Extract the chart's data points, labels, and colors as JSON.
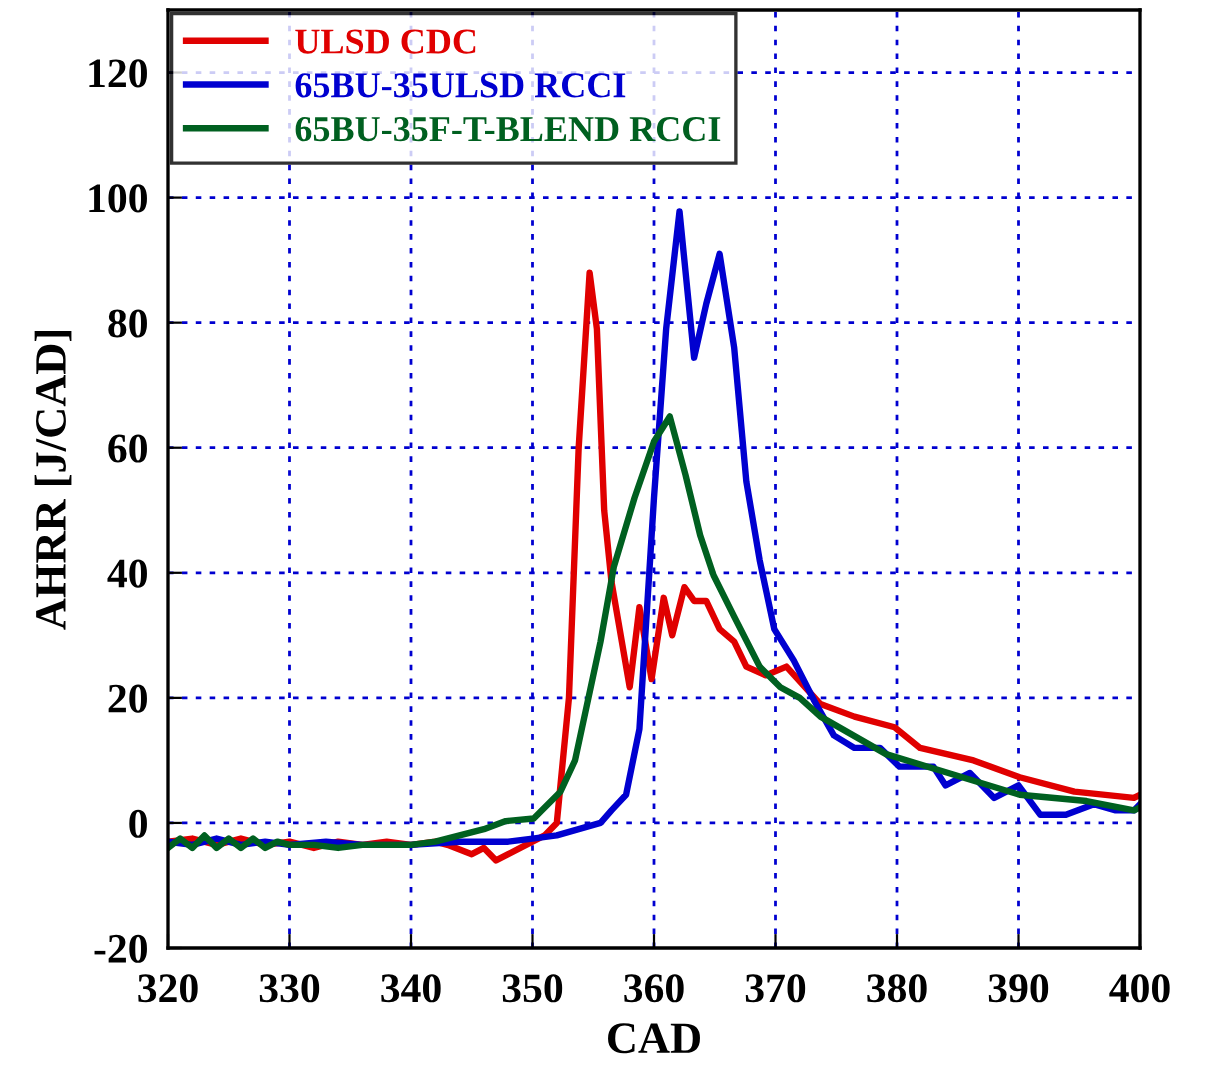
{
  "chart_data": {
    "type": "line",
    "xlabel": "CAD",
    "ylabel": "AHRR [J/CAD]",
    "xlim": [
      320,
      400
    ],
    "ylim": [
      -20,
      130
    ],
    "xticks": [
      320,
      330,
      340,
      350,
      360,
      370,
      380,
      390,
      400
    ],
    "yticks": [
      -20,
      0,
      20,
      40,
      60,
      80,
      100,
      120
    ],
    "grid": true,
    "legend": "top left",
    "line_style": "solid",
    "marker": "none",
    "series": [
      {
        "name": "ULSD CDC",
        "color": "#e00000",
        "x": [
          320,
          322,
          324,
          326,
          328,
          330,
          332,
          334,
          336,
          338,
          340,
          342,
          343,
          345,
          346,
          347,
          348,
          349,
          350,
          351,
          352,
          353,
          353.8,
          354.7,
          355.3,
          355.9,
          356.5,
          358.0,
          358.8,
          359.8,
          360.8,
          361.5,
          362.5,
          363.3,
          364.3,
          365.4,
          366.6,
          367.6,
          369.2,
          370.9,
          373.7,
          376.5,
          379.8,
          381.9,
          386.3,
          390.1,
          394.6,
          399.5,
          400
        ],
        "values": [
          -3,
          -2.5,
          -3.5,
          -2.5,
          -3.5,
          -3,
          -4,
          -3,
          -3.5,
          -3,
          -3.5,
          -3,
          -3.5,
          -5,
          -4,
          -6,
          -5,
          -4,
          -3,
          -2,
          0,
          20,
          60,
          88,
          79,
          50,
          38.6,
          21.7,
          34.5,
          23,
          36,
          30,
          37.7,
          35.5,
          35.5,
          31,
          29,
          25,
          23.6,
          25,
          19,
          17,
          15.3,
          12,
          10,
          7.3,
          5,
          4,
          4.5
        ]
      },
      {
        "name": "65BU-35ULSD RCCI",
        "color": "#0000d0",
        "x": [
          320,
          322,
          324,
          326,
          328,
          330,
          333,
          336,
          340,
          344,
          348,
          350,
          352,
          355.6,
          356.5,
          357.7,
          358.8,
          360,
          361,
          362.1,
          363.3,
          364.3,
          365.4,
          366.6,
          367.6,
          368.7,
          369.9,
          371.5,
          373.2,
          374.8,
          376.5,
          378.6,
          380.2,
          383,
          384,
          386,
          388,
          390,
          391.8,
          393.9,
          396.2,
          398,
          399.5,
          400
        ],
        "values": [
          -3,
          -3.5,
          -2.5,
          -3.5,
          -3,
          -3.5,
          -3,
          -3.5,
          -3.5,
          -3,
          -3,
          -2.5,
          -2,
          0,
          2,
          4.5,
          15,
          52,
          79,
          97.8,
          74.4,
          83,
          91,
          76,
          54.6,
          42,
          31,
          26,
          19.5,
          14,
          12,
          12,
          9,
          9,
          6,
          8,
          4,
          6,
          1.3,
          1.3,
          3,
          2,
          2,
          3
        ]
      },
      {
        "name": "65BU-35F-T-BLEND RCCI",
        "color": "#006020",
        "x": [
          320,
          321,
          322,
          323,
          324,
          325,
          326,
          327,
          328,
          329,
          330,
          332,
          334,
          336,
          338,
          340,
          342,
          344,
          346,
          347.8,
          350.1,
          352.3,
          353.5,
          355.6,
          356.7,
          358.4,
          360,
          361.3,
          362.6,
          363.8,
          364.9,
          366.6,
          368.7,
          370.4,
          372,
          373.7,
          379.1,
          384.7,
          390.1,
          395.6,
          399.5,
          400
        ],
        "values": [
          -4,
          -2.5,
          -4,
          -2,
          -4,
          -2.5,
          -4,
          -2.5,
          -4,
          -3,
          -3.5,
          -3.5,
          -4,
          -3.5,
          -3.5,
          -3.5,
          -3,
          -2,
          -1,
          0.3,
          0.7,
          5,
          10,
          29,
          41,
          52,
          61,
          65,
          55.6,
          46,
          39.6,
          33,
          25,
          21.7,
          20,
          17,
          11,
          7.7,
          4.5,
          3.5,
          2,
          2.5
        ]
      }
    ]
  }
}
